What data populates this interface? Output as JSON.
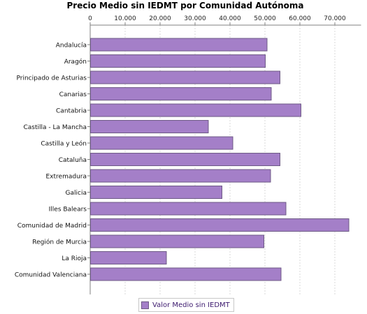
{
  "chart_data": {
    "type": "bar",
    "orientation": "horizontal",
    "title": "Precio Medio sin IEDMT por Comunidad Autónoma",
    "xlabel": "",
    "ylabel": "",
    "categories": [
      "Andalucía",
      "Aragón",
      "Principado de Asturias",
      "Canarias",
      "Cantabria",
      "Castilla - La Mancha",
      "Castilla y León",
      "Cataluña",
      "Extremadura",
      "Galicia",
      "Illes Balears",
      "Comunidad de Madrid",
      "Región de Murcia",
      "La Rioja",
      "Comunidad Valenciana"
    ],
    "series": [
      {
        "name": "Valor Medio sin IEDMT",
        "values": [
          50500,
          50000,
          54200,
          51700,
          60200,
          33700,
          40700,
          54200,
          51500,
          37600,
          55900,
          73900,
          49600,
          21700,
          54500
        ]
      }
    ],
    "xlim": [
      0,
      77500
    ],
    "ticks": [
      0,
      10000,
      20000,
      30000,
      40000,
      50000,
      60000,
      70000
    ],
    "tick_labels": [
      "0",
      "10.000",
      "20.000",
      "30.000",
      "40.000",
      "50.000",
      "60.000",
      "70.000"
    ],
    "axis_position": "top",
    "grid": true,
    "legend_position": "bottom",
    "colors": {
      "bar": "#a47fc8",
      "bar_border": "#6e5a86",
      "grid": "#d8d8d8",
      "axis": "#808080"
    }
  }
}
